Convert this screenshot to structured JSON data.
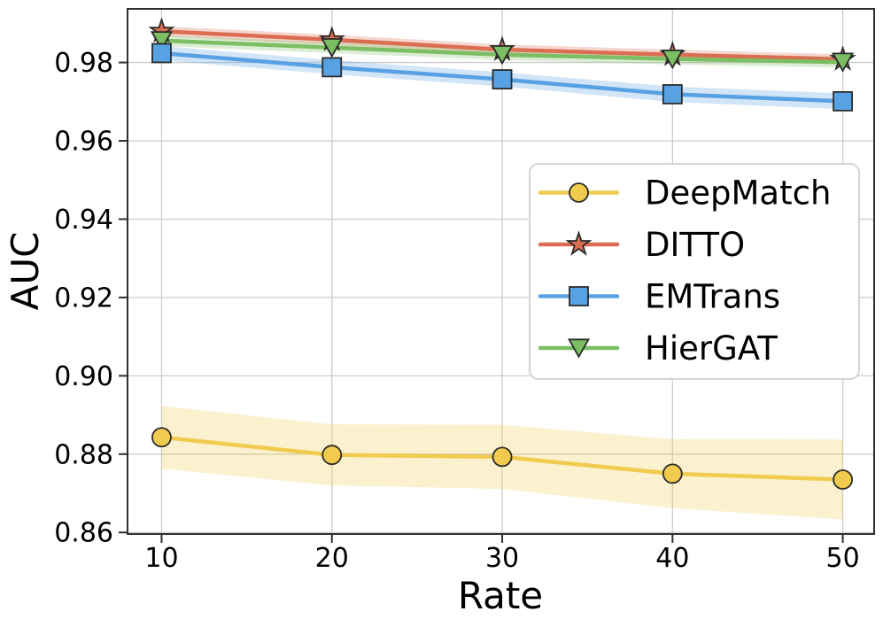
{
  "chart_data": {
    "type": "line",
    "title": "",
    "xlabel": "Rate",
    "ylabel": "AUC",
    "x": [
      10,
      20,
      30,
      40,
      50
    ],
    "x_tick_labels": [
      "10",
      "20",
      "30",
      "40",
      "50"
    ],
    "y_ticks": [
      0.86,
      0.88,
      0.9,
      0.92,
      0.94,
      0.96,
      0.98
    ],
    "y_tick_labels": [
      "0.86",
      "0.88",
      "0.90",
      "0.92",
      "0.94",
      "0.96",
      "0.98"
    ],
    "xlim": [
      8,
      51.84
    ],
    "ylim": [
      0.8596,
      0.9937
    ],
    "grid": true,
    "legend_position": "center-right",
    "background_color": "#ffffff",
    "grid_color": "#cccccc",
    "spine_color": "#2f2f2f",
    "text_color": "#000000",
    "marker_edge_color": "#2b2b2b",
    "band_opacity": 0.28,
    "draw_order_markers": [
      0,
      1,
      3,
      2
    ],
    "series": [
      {
        "name": "DeepMatch",
        "color": "#F0CB4E",
        "marker": "circle",
        "values": [
          0.8843,
          0.8798,
          0.8793,
          0.875,
          0.8735
        ],
        "band": [
          0.008,
          0.0078,
          0.0082,
          0.0088,
          0.0102
        ]
      },
      {
        "name": "DITTO",
        "color": "#DB6E52",
        "marker": "star",
        "values": [
          0.988,
          0.9858,
          0.9833,
          0.982,
          0.9808
        ],
        "band": [
          0.0013,
          0.0013,
          0.0013,
          0.0013,
          0.0013
        ]
      },
      {
        "name": "EMTrans",
        "color": "#58A2E3",
        "marker": "square",
        "values": [
          0.9824,
          0.9788,
          0.9757,
          0.9719,
          0.9701
        ],
        "band": [
          0.0018,
          0.0018,
          0.0018,
          0.002,
          0.002
        ]
      },
      {
        "name": "HierGAT",
        "color": "#7CBE63",
        "marker": "triangle-down",
        "values": [
          0.9856,
          0.9838,
          0.982,
          0.9809,
          0.9801
        ],
        "band": [
          0.0014,
          0.0014,
          0.0014,
          0.0014,
          0.0014
        ]
      }
    ]
  }
}
